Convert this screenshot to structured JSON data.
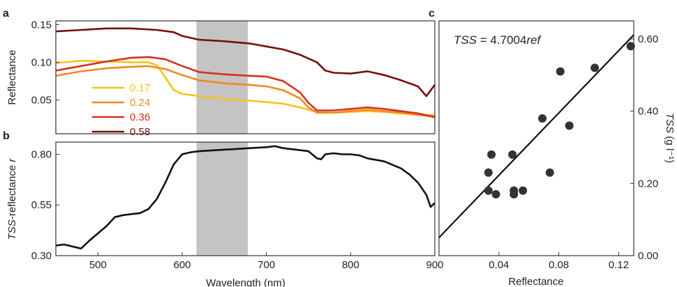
{
  "panels": {
    "a": "a",
    "b": "b",
    "c": "c"
  },
  "chart_data": [
    {
      "type": "line",
      "panel": "a",
      "ylabel": "Reflectance",
      "xlim": [
        450,
        900
      ],
      "ylim": [
        0.005,
        0.155
      ],
      "yticks": [
        {
          "v": 0.05,
          "label": "0.05"
        },
        {
          "v": 0.1,
          "label": "0.10"
        },
        {
          "v": 0.15,
          "label": "0.15"
        }
      ],
      "shaded_band": [
        617,
        678
      ],
      "legend_position": "lower-left",
      "series": [
        {
          "name": "0.17",
          "color": "#f5c518",
          "x": [
            450,
            480,
            510,
            540,
            560,
            570,
            580,
            590,
            600,
            620,
            650,
            680,
            700,
            720,
            740,
            760,
            780,
            800,
            820,
            840,
            860,
            880,
            900
          ],
          "y": [
            0.099,
            0.102,
            0.101,
            0.1,
            0.1,
            0.096,
            0.08,
            0.063,
            0.058,
            0.055,
            0.051,
            0.049,
            0.047,
            0.045,
            0.04,
            0.034,
            0.033,
            0.034,
            0.035,
            0.034,
            0.032,
            0.03,
            0.03
          ]
        },
        {
          "name": "0.24",
          "color": "#f08a1c",
          "x": [
            450,
            480,
            510,
            540,
            560,
            580,
            600,
            620,
            650,
            680,
            700,
            720,
            740,
            750,
            760,
            780,
            800,
            820,
            840,
            860,
            880,
            900
          ],
          "y": [
            0.082,
            0.088,
            0.092,
            0.094,
            0.095,
            0.091,
            0.083,
            0.076,
            0.072,
            0.07,
            0.068,
            0.063,
            0.052,
            0.04,
            0.033,
            0.033,
            0.035,
            0.037,
            0.035,
            0.033,
            0.03,
            0.028
          ]
        },
        {
          "name": "0.36",
          "color": "#d7301f",
          "x": [
            450,
            480,
            510,
            540,
            560,
            580,
            600,
            620,
            650,
            680,
            700,
            720,
            740,
            750,
            760,
            780,
            800,
            820,
            840,
            860,
            880,
            900
          ],
          "y": [
            0.089,
            0.095,
            0.101,
            0.106,
            0.107,
            0.104,
            0.095,
            0.087,
            0.084,
            0.082,
            0.081,
            0.075,
            0.06,
            0.046,
            0.036,
            0.036,
            0.038,
            0.04,
            0.038,
            0.035,
            0.032,
            0.027
          ]
        },
        {
          "name": "0.58",
          "color": "#7a0a0a",
          "x": [
            450,
            480,
            510,
            540,
            570,
            590,
            600,
            620,
            650,
            680,
            700,
            720,
            740,
            760,
            770,
            780,
            800,
            820,
            840,
            860,
            880,
            890,
            900
          ],
          "y": [
            0.141,
            0.143,
            0.145,
            0.145,
            0.143,
            0.14,
            0.135,
            0.13,
            0.128,
            0.125,
            0.121,
            0.117,
            0.11,
            0.1,
            0.089,
            0.086,
            0.085,
            0.088,
            0.083,
            0.076,
            0.068,
            0.055,
            0.07
          ]
        }
      ]
    },
    {
      "type": "line",
      "panel": "b",
      "ylabel": "TSS-reflectance r",
      "xlabel": "Wavelength (nm)",
      "xlim": [
        450,
        900
      ],
      "ylim": [
        0.3,
        0.86
      ],
      "xticks": [
        {
          "v": 500,
          "label": "500"
        },
        {
          "v": 600,
          "label": "600"
        },
        {
          "v": 700,
          "label": "700"
        },
        {
          "v": 800,
          "label": "800"
        },
        {
          "v": 900,
          "label": "900"
        }
      ],
      "yticks": [
        {
          "v": 0.3,
          "label": "0.30"
        },
        {
          "v": 0.55,
          "label": "0.55"
        },
        {
          "v": 0.8,
          "label": "0.80"
        }
      ],
      "shaded_band": [
        617,
        678
      ],
      "series": [
        {
          "color": "#111111",
          "x": [
            450,
            460,
            470,
            480,
            490,
            500,
            510,
            520,
            530,
            540,
            550,
            560,
            570,
            580,
            590,
            600,
            610,
            620,
            640,
            660,
            680,
            700,
            710,
            720,
            740,
            750,
            760,
            765,
            770,
            780,
            790,
            800,
            810,
            820,
            840,
            860,
            870,
            880,
            890,
            895,
            900
          ],
          "y": [
            0.35,
            0.355,
            0.345,
            0.335,
            0.375,
            0.41,
            0.445,
            0.49,
            0.5,
            0.505,
            0.51,
            0.53,
            0.58,
            0.66,
            0.75,
            0.8,
            0.81,
            0.815,
            0.82,
            0.825,
            0.83,
            0.835,
            0.84,
            0.83,
            0.82,
            0.815,
            0.78,
            0.775,
            0.8,
            0.805,
            0.8,
            0.8,
            0.795,
            0.78,
            0.765,
            0.73,
            0.7,
            0.66,
            0.6,
            0.54,
            0.56
          ]
        }
      ]
    },
    {
      "type": "scatter",
      "panel": "c",
      "equation_lhs": "TSS",
      "equation_mid": " = 4.7004",
      "equation_rhs": "ref",
      "xlabel": "Reflectance",
      "ylabel_italic": "TSS",
      "ylabel_rest": " (g l⁻¹)",
      "xlim": [
        0.0,
        0.13
      ],
      "ylim": [
        0.0,
        0.65
      ],
      "xticks": [
        {
          "v": 0.04,
          "label": "0.04"
        },
        {
          "v": 0.08,
          "label": "0.08"
        },
        {
          "v": 0.12,
          "label": "0.12"
        }
      ],
      "yticks": [
        {
          "v": 0.0,
          "label": "0.00"
        },
        {
          "v": 0.2,
          "label": "0.20"
        },
        {
          "v": 0.4,
          "label": "0.40"
        },
        {
          "v": 0.6,
          "label": "0.60"
        }
      ],
      "fit": {
        "slope": 4.7004,
        "x_range": [
          0.0,
          0.13
        ],
        "color": "#111111"
      },
      "point_color": "#333333",
      "points": [
        [
          0.033,
          0.23
        ],
        [
          0.035,
          0.28
        ],
        [
          0.033,
          0.18
        ],
        [
          0.038,
          0.17
        ],
        [
          0.049,
          0.28
        ],
        [
          0.05,
          0.18
        ],
        [
          0.05,
          0.17
        ],
        [
          0.056,
          0.18
        ],
        [
          0.069,
          0.38
        ],
        [
          0.074,
          0.23
        ],
        [
          0.081,
          0.51
        ],
        [
          0.087,
          0.36
        ],
        [
          0.104,
          0.52
        ],
        [
          0.128,
          0.58
        ]
      ]
    }
  ]
}
